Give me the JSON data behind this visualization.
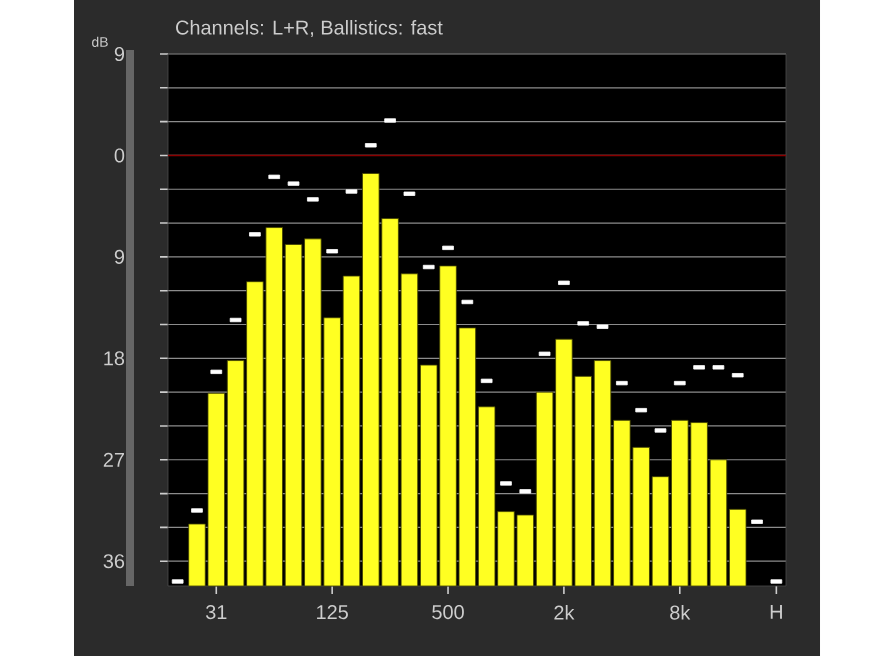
{
  "chart_data": {
    "type": "bar",
    "title": "Channels: L+R, Ballistics: fast",
    "ylabel": "dB",
    "categories": [
      null,
      null,
      "31",
      null,
      null,
      null,
      null,
      null,
      "125",
      null,
      null,
      null,
      null,
      null,
      "500",
      null,
      null,
      null,
      null,
      null,
      "2k",
      null,
      null,
      null,
      null,
      null,
      "8k",
      null,
      null,
      null,
      null,
      "H"
    ],
    "series": [
      {
        "color": "#ffff22",
        "values": [
          null,
          5.5,
          17.1,
          20.0,
          27.0,
          31.8,
          30.3,
          30.8,
          23.8,
          27.5,
          36.6,
          32.6,
          27.7,
          19.6,
          28.4,
          22.9,
          15.9,
          6.6,
          6.3,
          17.2,
          21.9,
          18.6,
          20.0,
          14.7,
          12.3,
          9.7,
          14.7,
          14.5,
          11.2,
          6.8,
          null,
          null
        ],
        "base": [
          null,
          -38.2,
          -38.2,
          -38.2,
          -38.2,
          -38.2,
          -38.2,
          -38.2,
          -38.2,
          -38.2,
          -38.2,
          -38.2,
          -38.2,
          -38.2,
          -38.2,
          -38.2,
          -38.2,
          -38.2,
          -38.2,
          -38.2,
          -38.2,
          -38.2,
          -38.2,
          -38.2,
          -38.2,
          -38.2,
          -38.2,
          -38.2,
          -38.2,
          -38.2,
          null,
          null
        ]
      },
      {
        "type": "scatter",
        "color": "#ffffff",
        "marker": "square",
        "values": [
          -37.8,
          -31.5,
          -19.2,
          -14.6,
          -7.0,
          -1.9,
          -2.5,
          -3.9,
          -8.5,
          -3.2,
          0.9,
          3.1,
          -3.4,
          -9.9,
          -8.2,
          -13.0,
          -20.0,
          -29.1,
          -29.8,
          -17.6,
          -11.3,
          -14.9,
          -15.2,
          -20.2,
          -22.6,
          -24.4,
          -20.2,
          -18.8,
          -18.8,
          -19.5,
          -32.5,
          -37.8
        ]
      }
    ],
    "ylim": [
      -38.2,
      9
    ],
    "yticks": [
      {
        "value": 9,
        "label": "9"
      },
      {
        "value": 6,
        "label": null
      },
      {
        "value": 3,
        "label": null
      },
      0,
      {
        "value": -3,
        "label": null
      },
      {
        "value": -6,
        "label": null
      },
      {
        "value": -9,
        "label": "9"
      },
      {
        "value": -12,
        "label": null
      },
      {
        "value": -15,
        "label": null
      },
      {
        "value": -18,
        "label": "18"
      },
      {
        "value": -21,
        "label": null
      },
      {
        "value": -24,
        "label": null
      },
      {
        "value": -27,
        "label": "27"
      },
      {
        "value": -30,
        "label": null
      },
      {
        "value": -33,
        "label": null
      },
      {
        "value": -36,
        "label": "36"
      }
    ],
    "grid": "y",
    "ref_lines": [
      {
        "axis": "y",
        "value": 0,
        "color": "#8b0000"
      }
    ]
  }
}
